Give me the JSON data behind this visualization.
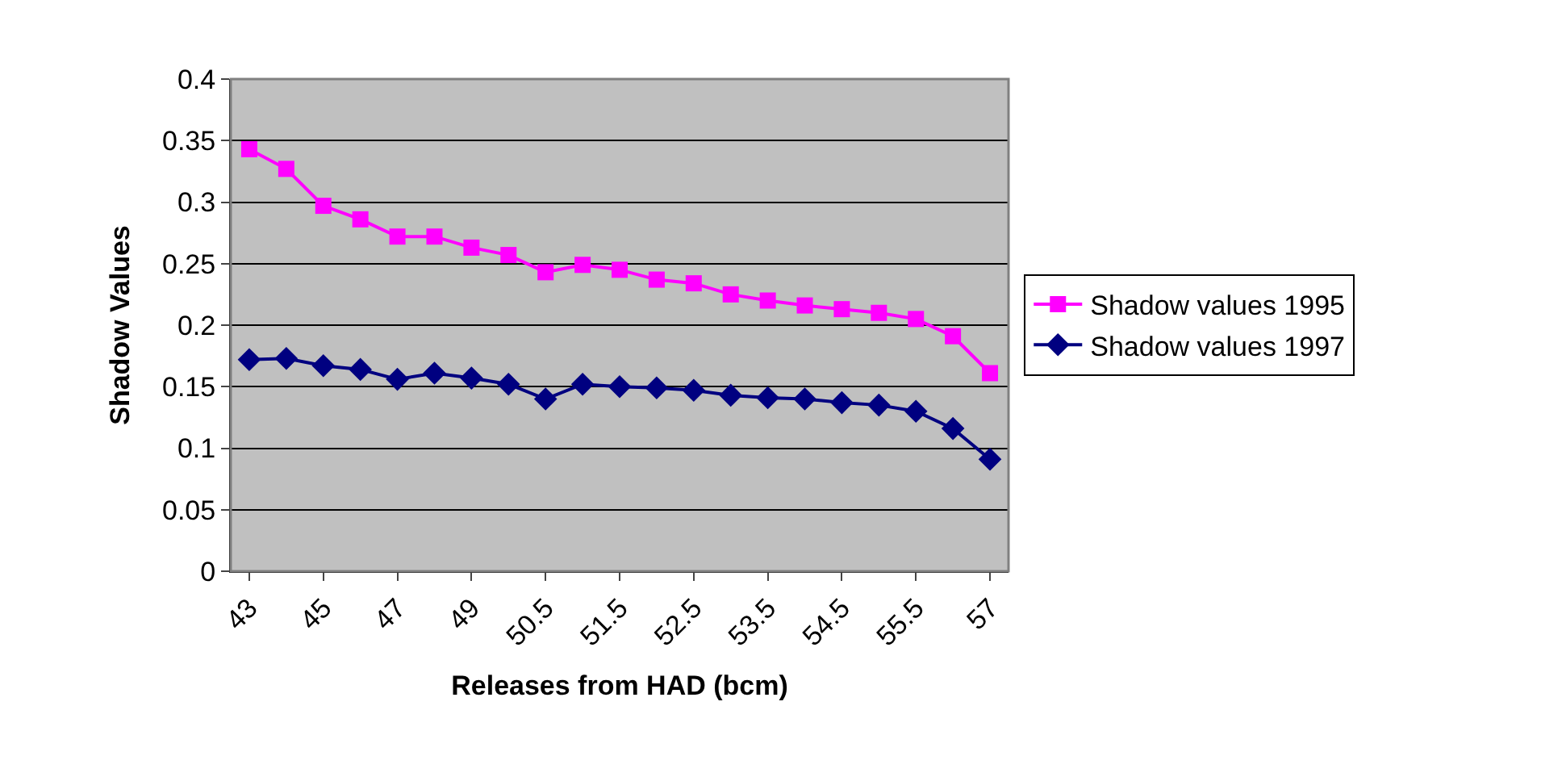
{
  "chart_data": {
    "type": "line",
    "xlabel": "Releases from HAD (bcm)",
    "ylabel": "Shadow Values",
    "categories": [
      "43",
      null,
      "45",
      null,
      "47",
      null,
      "49",
      null,
      "50.5",
      null,
      "51.5",
      null,
      "52.5",
      null,
      "53.5",
      null,
      "54.5",
      null,
      "55.5",
      null,
      "57"
    ],
    "series": [
      {
        "name": "Shadow values 1995",
        "color": "#ff00ff",
        "marker": "square",
        "values": [
          0.343,
          0.327,
          0.297,
          0.286,
          0.272,
          0.272,
          0.263,
          0.257,
          0.243,
          0.249,
          0.245,
          0.237,
          0.234,
          0.225,
          0.22,
          0.216,
          0.213,
          0.21,
          0.205,
          0.191,
          0.161
        ]
      },
      {
        "name": "Shadow values 1997",
        "color": "#000080",
        "marker": "diamond",
        "values": [
          0.172,
          0.173,
          0.167,
          0.164,
          0.156,
          0.161,
          0.157,
          0.152,
          0.14,
          0.152,
          0.15,
          0.149,
          0.147,
          0.143,
          0.141,
          0.14,
          0.137,
          0.135,
          0.13,
          0.116,
          0.091
        ]
      }
    ],
    "ylim": [
      0,
      0.4
    ],
    "yticks": [
      0,
      0.05,
      0.1,
      0.15,
      0.2,
      0.25,
      0.3,
      0.35,
      0.4
    ],
    "grid": "y",
    "legend": "right",
    "line_style": "solid"
  }
}
